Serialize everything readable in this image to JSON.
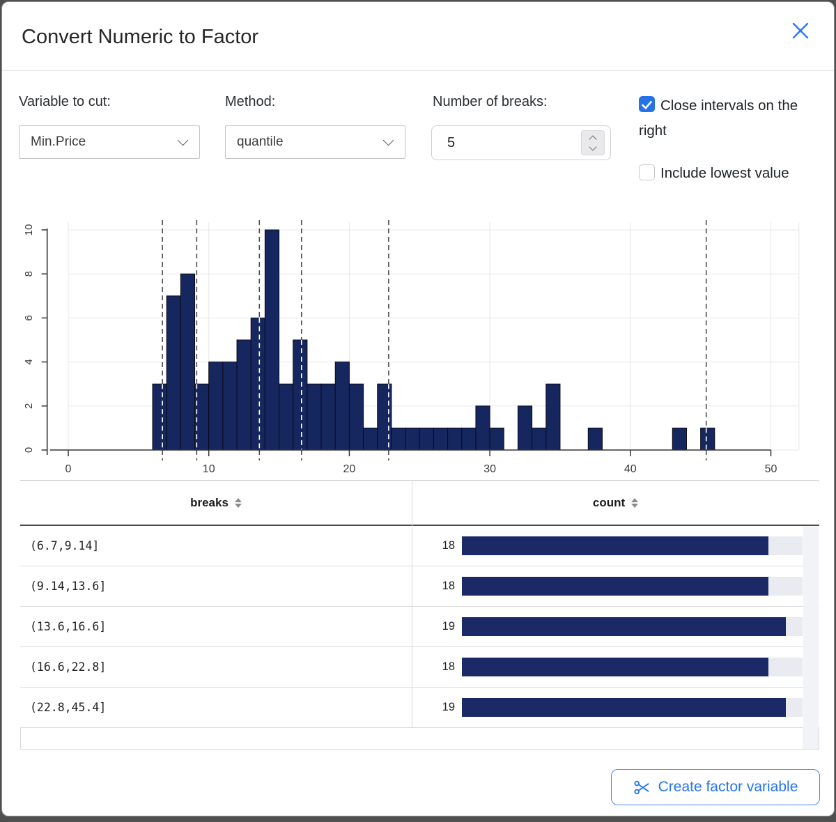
{
  "dialog": {
    "title": "Convert Numeric to Factor"
  },
  "form": {
    "variable": {
      "label": "Variable to cut:",
      "value": "Min.Price"
    },
    "method": {
      "label": "Method:",
      "value": "quantile"
    },
    "breaks": {
      "label": "Number of breaks:",
      "value": "5"
    },
    "close_intervals": {
      "label": "Close intervals on the right",
      "checked": true
    },
    "include_lowest": {
      "label": "Include lowest value",
      "checked": false
    }
  },
  "chart_data": {
    "type": "bar",
    "subtype": "histogram",
    "title": "",
    "xlabel": "",
    "ylabel": "",
    "bins_start": 6,
    "bin_width": 1,
    "values": [
      3,
      7,
      8,
      3,
      4,
      4,
      5,
      6,
      10,
      3,
      5,
      3,
      3,
      4,
      3,
      1,
      3,
      1,
      1,
      1,
      1,
      1,
      1,
      2,
      1,
      0,
      2,
      1,
      3,
      0,
      0,
      1,
      0,
      0,
      0,
      0,
      0,
      1,
      0,
      1
    ],
    "break_lines": [
      6.7,
      9.14,
      13.6,
      16.6,
      22.8,
      45.4
    ],
    "x_ticks": [
      0,
      10,
      20,
      30,
      40,
      50
    ],
    "y_ticks": [
      0,
      2,
      4,
      6,
      8,
      10
    ],
    "xlim": [
      -1.3,
      52
    ],
    "ylim": [
      0,
      10
    ],
    "grid": true,
    "legend_position": "none",
    "bar_color": "#16265f",
    "bar_stroke": "#0b0b18",
    "grid_color": "#e7e7e7",
    "axis_color": "#333333",
    "tick_label_color": "#3a3a3a",
    "dash_color": "#4d4d4d",
    "dash_overlay_color": "#ffffff"
  },
  "table": {
    "columns": [
      {
        "label": "breaks"
      },
      {
        "label": "count"
      }
    ],
    "rows": [
      {
        "breaks": "(6.7,9.14]",
        "count": 18
      },
      {
        "breaks": "(9.14,13.6]",
        "count": 18
      },
      {
        "breaks": "(13.6,16.6]",
        "count": 19
      },
      {
        "breaks": "(16.6,22.8]",
        "count": 18
      },
      {
        "breaks": "(22.8,45.4]",
        "count": 19
      }
    ],
    "bar_scale_max": 20,
    "bar_color": "#1b2a66",
    "track_color": "#e9ebf0"
  },
  "footer": {
    "create_button_label": "Create factor variable"
  },
  "icons": {
    "close": "x-cross",
    "dropdown": "chevron-down",
    "spinner": "up-down-chevrons",
    "sort": "up-down-triangles",
    "checkmark": "check",
    "scissors": "scissors"
  },
  "colors": {
    "accent": "#2574f0",
    "checkbox_checked": "#2673e8",
    "navy": "#16265f"
  }
}
